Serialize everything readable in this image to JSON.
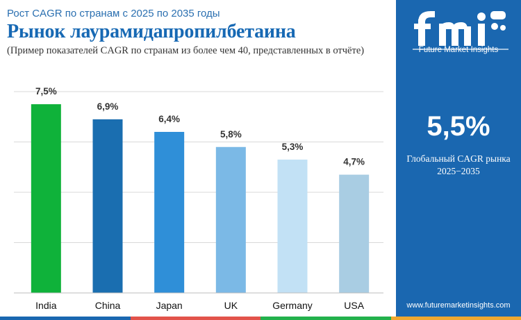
{
  "header": {
    "subtitle": "Рост CAGR по странам с 2025 по 2035 годы",
    "title": "Рынок лаурамидапропилбетаина",
    "note": "(Пример показателей CAGR по странам из более чем 40, представленных в отчёте)"
  },
  "side_panel": {
    "brand": "Future Market Insights",
    "logo_icon": "fmi-logo-icon",
    "global_value": "5,5%",
    "global_label_line1": "Глобальный CAGR рынка",
    "global_label_line2": "2025−2035",
    "url": "www.futuremarketinsights.com",
    "background": "#1a67b0"
  },
  "chart_data": {
    "type": "bar",
    "categories": [
      "India",
      "China",
      "Japan",
      "UK",
      "Germany",
      "USA"
    ],
    "values": [
      7.5,
      6.9,
      6.4,
      5.8,
      5.3,
      4.7
    ],
    "labels": [
      "7,5%",
      "6,9%",
      "6,4%",
      "5,8%",
      "5,3%",
      "4,7%"
    ],
    "colors": [
      "#0fb23a",
      "#1a6eb0",
      "#2f8fd8",
      "#7bb9e6",
      "#c2e1f5",
      "#a9cde3"
    ],
    "ylim": [
      0,
      8
    ],
    "grid": true,
    "title": "",
    "xlabel": "",
    "ylabel": ""
  },
  "bottom_strip_colors": [
    "#1a67b0",
    "#e2534a",
    "#22b14c",
    "#f0a830"
  ]
}
